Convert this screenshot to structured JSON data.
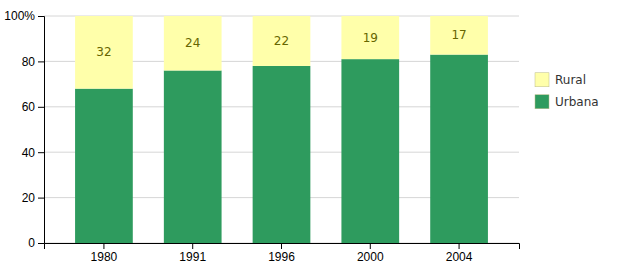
{
  "chart_data": {
    "type": "bar",
    "stacked": true,
    "categories": [
      "1980",
      "1991",
      "1996",
      "2000",
      "2004"
    ],
    "series": [
      {
        "name": "Urbana",
        "color": "#2E9B5E",
        "values": [
          68,
          76,
          78,
          81,
          83
        ]
      },
      {
        "name": "Rural",
        "color": "#FFFFAA",
        "values": [
          32,
          24,
          22,
          19,
          17
        ],
        "data_labels": true
      }
    ],
    "ylim": [
      0,
      100
    ],
    "yticks": [
      0,
      20,
      40,
      60,
      80,
      {
        "value": 100,
        "label": "100%"
      }
    ],
    "grid": true,
    "legend": "right"
  }
}
